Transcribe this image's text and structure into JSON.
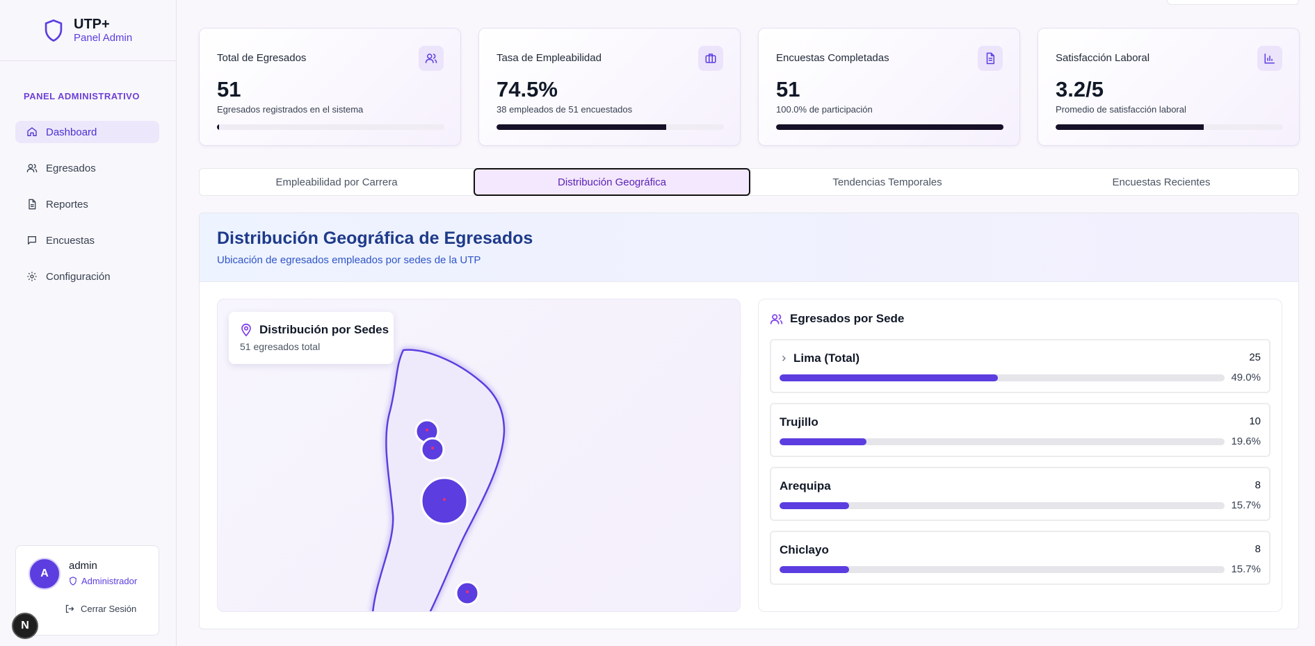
{
  "brand": {
    "title": "UTP+",
    "subtitle": "Panel Admin"
  },
  "sidebar": {
    "section_label": "PANEL ADMINISTRATIVO",
    "items": [
      {
        "label": "Dashboard",
        "icon": "home-icon",
        "active": true
      },
      {
        "label": "Egresados",
        "icon": "users-icon"
      },
      {
        "label": "Reportes",
        "icon": "file-icon"
      },
      {
        "label": "Encuestas",
        "icon": "message-icon"
      },
      {
        "label": "Configuración",
        "icon": "gear-icon"
      }
    ]
  },
  "user": {
    "initial": "A",
    "name": "admin",
    "role": "Administrador",
    "logout_label": "Cerrar Sesión"
  },
  "dev_badge": "N",
  "stats": [
    {
      "title": "Total de Egresados",
      "value": "51",
      "desc": "Egresados registrados en el sistema",
      "progress": 0.01,
      "icon": "users-icon"
    },
    {
      "title": "Tasa de Empleabilidad",
      "value": "74.5%",
      "desc": "38 empleados de 51 encuestados",
      "progress": 0.745,
      "icon": "briefcase-icon"
    },
    {
      "title": "Encuestas Completadas",
      "value": "51",
      "desc": "100.0% de participación",
      "progress": 1.0,
      "icon": "document-icon"
    },
    {
      "title": "Satisfacción Laboral",
      "value": "3.2/5",
      "desc": "Promedio de satisfacción laboral",
      "progress": 0.65,
      "icon": "bar-chart-icon"
    }
  ],
  "tabs": [
    {
      "label": "Empleabilidad por Carrera"
    },
    {
      "label": "Distribución Geográfica",
      "active": true
    },
    {
      "label": "Tendencias Temporales"
    },
    {
      "label": "Encuestas Recientes"
    }
  ],
  "panel": {
    "title": "Distribución Geográfica de Egresados",
    "subtitle": "Ubicación de egresados empleados por sedes de la UTP"
  },
  "map": {
    "card_title": "Distribución por Sedes",
    "card_sub": "51 egresados total",
    "accent": "#5b3de0"
  },
  "list": {
    "title": "Egresados por Sede",
    "sedes": [
      {
        "name": "Lima (Total)",
        "count": "25",
        "pct": "49.0%",
        "fraction": 0.49,
        "expandable": true
      },
      {
        "name": "Trujillo",
        "count": "10",
        "pct": "19.6%",
        "fraction": 0.196
      },
      {
        "name": "Arequipa",
        "count": "8",
        "pct": "15.7%",
        "fraction": 0.157
      },
      {
        "name": "Chiclayo",
        "count": "8",
        "pct": "15.7%",
        "fraction": 0.157
      }
    ]
  }
}
